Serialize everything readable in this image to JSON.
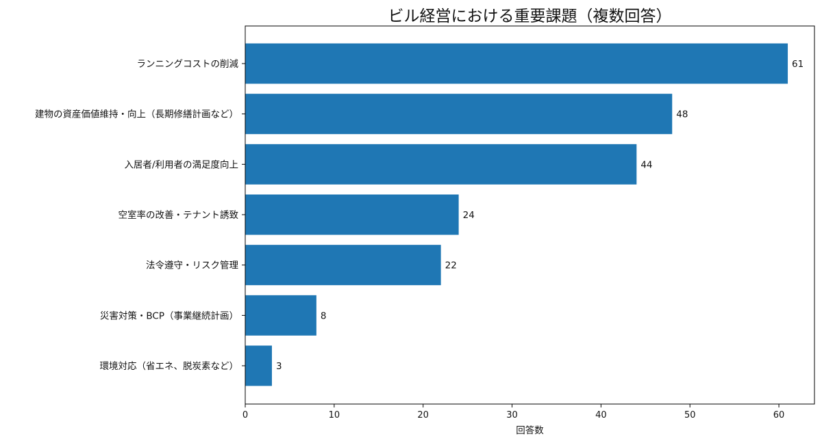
{
  "chart_data": {
    "type": "bar",
    "orientation": "horizontal",
    "title": "ビル経営における重要課題（複数回答）",
    "xlabel": "回答数",
    "ylabel": "",
    "categories": [
      "ランニングコストの削減",
      "建物の資産価値維持・向上（長期修繕計画など）",
      "入居者/利用者の満足度向上",
      "空室率の改善・テナント誘致",
      "法令遵守・リスク管理",
      "災害対策・BCP（事業継続計画）",
      "環境対応（省エネ、脱炭素など）"
    ],
    "values": [
      61,
      48,
      44,
      24,
      22,
      8,
      3
    ],
    "data_labels": [
      "61",
      "48",
      "44",
      "24",
      "22",
      "8",
      "3"
    ],
    "xlim": [
      0,
      64
    ],
    "xticks": [
      0,
      10,
      20,
      30,
      40,
      50,
      60
    ],
    "xtick_labels": [
      "0",
      "10",
      "20",
      "30",
      "40",
      "50",
      "60"
    ],
    "grid": false,
    "legend": "none",
    "bar_color": "#1f77b4"
  }
}
